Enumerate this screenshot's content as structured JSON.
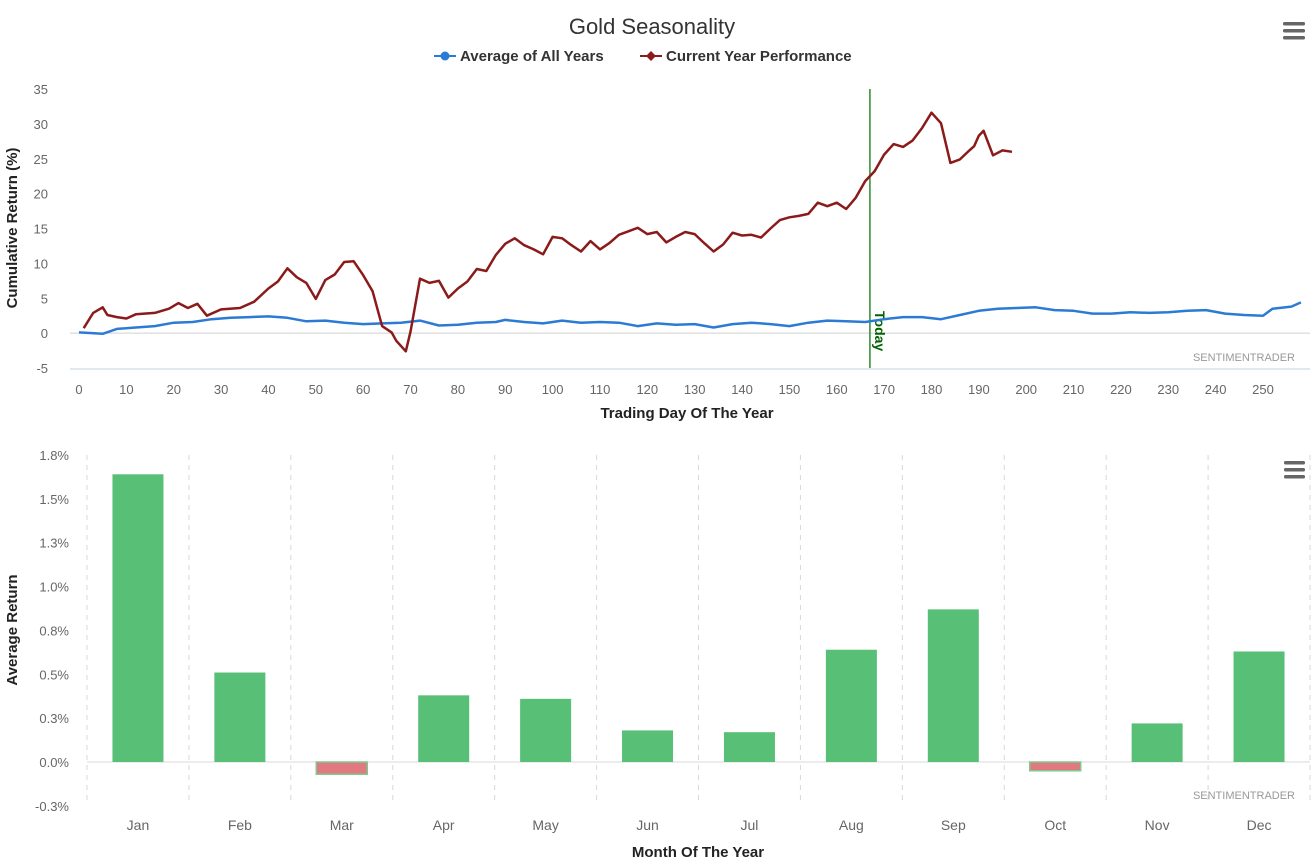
{
  "colors": {
    "avg_line": "#2b7bd5",
    "current_line": "#8b1a1a",
    "today_line": "#2e8b2e",
    "bar_positive": "#58bf77",
    "bar_negative": "#e07a80",
    "bar_negative_border": "#7fc98f"
  },
  "menu_icons": [
    "hamburger-icon",
    "hamburger-icon"
  ],
  "chart_data": [
    {
      "type": "line",
      "title": "Gold Seasonality",
      "xlabel": "Trading Day Of The Year",
      "ylabel": "Cumulative Return (%)",
      "xlim": [
        -2,
        259
      ],
      "ylim": [
        -5,
        35
      ],
      "xticks": [
        0,
        10,
        20,
        30,
        40,
        50,
        60,
        70,
        80,
        90,
        100,
        110,
        120,
        130,
        140,
        150,
        160,
        170,
        180,
        190,
        200,
        210,
        220,
        230,
        240,
        250
      ],
      "yticks": [
        -5,
        0,
        5,
        10,
        15,
        20,
        25,
        30,
        35
      ],
      "credit": "SENTIMENTRADER",
      "today": {
        "x": 167,
        "label": "Today"
      },
      "series": [
        {
          "name": "Average of All Years",
          "color": "#2b7bd5",
          "points": [
            [
              0,
              0.1
            ],
            [
              5,
              -0.1
            ],
            [
              8,
              0.6
            ],
            [
              12,
              0.8
            ],
            [
              16,
              1.0
            ],
            [
              20,
              1.5
            ],
            [
              24,
              1.6
            ],
            [
              28,
              2.0
            ],
            [
              32,
              2.2
            ],
            [
              36,
              2.3
            ],
            [
              40,
              2.4
            ],
            [
              44,
              2.2
            ],
            [
              48,
              1.7
            ],
            [
              52,
              1.8
            ],
            [
              56,
              1.5
            ],
            [
              60,
              1.3
            ],
            [
              64,
              1.4
            ],
            [
              68,
              1.5
            ],
            [
              72,
              1.8
            ],
            [
              76,
              1.1
            ],
            [
              80,
              1.2
            ],
            [
              84,
              1.5
            ],
            [
              88,
              1.6
            ],
            [
              90,
              1.9
            ],
            [
              94,
              1.6
            ],
            [
              98,
              1.4
            ],
            [
              102,
              1.8
            ],
            [
              106,
              1.5
            ],
            [
              110,
              1.6
            ],
            [
              114,
              1.5
            ],
            [
              118,
              1.0
            ],
            [
              122,
              1.4
            ],
            [
              126,
              1.2
            ],
            [
              130,
              1.3
            ],
            [
              134,
              0.8
            ],
            [
              138,
              1.3
            ],
            [
              142,
              1.5
            ],
            [
              146,
              1.3
            ],
            [
              150,
              1.0
            ],
            [
              154,
              1.5
            ],
            [
              158,
              1.8
            ],
            [
              162,
              1.7
            ],
            [
              166,
              1.6
            ],
            [
              170,
              2.0
            ],
            [
              174,
              2.3
            ],
            [
              178,
              2.3
            ],
            [
              182,
              2.0
            ],
            [
              186,
              2.6
            ],
            [
              190,
              3.2
            ],
            [
              194,
              3.5
            ],
            [
              198,
              3.6
            ],
            [
              202,
              3.7
            ],
            [
              206,
              3.3
            ],
            [
              210,
              3.2
            ],
            [
              214,
              2.8
            ],
            [
              218,
              2.8
            ],
            [
              222,
              3.0
            ],
            [
              226,
              2.9
            ],
            [
              230,
              3.0
            ],
            [
              234,
              3.2
            ],
            [
              238,
              3.3
            ],
            [
              242,
              2.8
            ],
            [
              246,
              2.6
            ],
            [
              250,
              2.5
            ],
            [
              252,
              3.5
            ],
            [
              256,
              3.8
            ],
            [
              258,
              4.4
            ]
          ]
        },
        {
          "name": "Current Year Performance",
          "color": "#8b1a1a",
          "points": [
            [
              1,
              0.7
            ],
            [
              3,
              2.9
            ],
            [
              5,
              3.7
            ],
            [
              6,
              2.6
            ],
            [
              8,
              2.3
            ],
            [
              10,
              2.1
            ],
            [
              12,
              2.7
            ],
            [
              16,
              2.9
            ],
            [
              19,
              3.5
            ],
            [
              21,
              4.3
            ],
            [
              23,
              3.6
            ],
            [
              25,
              4.2
            ],
            [
              27,
              2.5
            ],
            [
              30,
              3.4
            ],
            [
              34,
              3.6
            ],
            [
              37,
              4.5
            ],
            [
              40,
              6.4
            ],
            [
              42,
              7.4
            ],
            [
              44,
              9.3
            ],
            [
              46,
              8.0
            ],
            [
              48,
              7.2
            ],
            [
              50,
              4.9
            ],
            [
              52,
              7.6
            ],
            [
              54,
              8.4
            ],
            [
              56,
              10.2
            ],
            [
              58,
              10.3
            ],
            [
              60,
              8.3
            ],
            [
              62,
              6.0
            ],
            [
              64,
              1.0
            ],
            [
              66,
              0.1
            ],
            [
              67,
              -1.1
            ],
            [
              69,
              -2.6
            ],
            [
              70,
              0.2
            ],
            [
              72,
              7.8
            ],
            [
              74,
              7.2
            ],
            [
              76,
              7.5
            ],
            [
              78,
              5.1
            ],
            [
              80,
              6.4
            ],
            [
              82,
              7.4
            ],
            [
              84,
              9.2
            ],
            [
              86,
              8.9
            ],
            [
              88,
              11.2
            ],
            [
              90,
              12.8
            ],
            [
              92,
              13.6
            ],
            [
              94,
              12.6
            ],
            [
              96,
              12.0
            ],
            [
              98,
              11.3
            ],
            [
              100,
              13.8
            ],
            [
              102,
              13.6
            ],
            [
              104,
              12.6
            ],
            [
              106,
              11.7
            ],
            [
              108,
              13.2
            ],
            [
              110,
              12.0
            ],
            [
              112,
              12.9
            ],
            [
              114,
              14.1
            ],
            [
              116,
              14.6
            ],
            [
              118,
              15.1
            ],
            [
              120,
              14.2
            ],
            [
              122,
              14.5
            ],
            [
              124,
              13.0
            ],
            [
              126,
              13.8
            ],
            [
              128,
              14.5
            ],
            [
              130,
              14.2
            ],
            [
              132,
              12.9
            ],
            [
              134,
              11.7
            ],
            [
              136,
              12.7
            ],
            [
              138,
              14.4
            ],
            [
              140,
              14.0
            ],
            [
              142,
              14.1
            ],
            [
              144,
              13.7
            ],
            [
              146,
              15.0
            ],
            [
              148,
              16.2
            ],
            [
              150,
              16.6
            ],
            [
              152,
              16.8
            ],
            [
              154,
              17.1
            ],
            [
              156,
              18.7
            ],
            [
              158,
              18.2
            ],
            [
              160,
              18.7
            ],
            [
              162,
              17.8
            ],
            [
              164,
              19.4
            ],
            [
              166,
              21.8
            ],
            [
              168,
              23.2
            ],
            [
              170,
              25.6
            ],
            [
              172,
              27.1
            ],
            [
              174,
              26.7
            ],
            [
              176,
              27.6
            ],
            [
              178,
              29.4
            ],
            [
              180,
              31.6
            ],
            [
              182,
              30.1
            ],
            [
              184,
              24.4
            ],
            [
              186,
              24.9
            ],
            [
              188,
              26.2
            ],
            [
              189,
              26.8
            ],
            [
              190,
              28.3
            ],
            [
              191,
              29.0
            ],
            [
              193,
              25.5
            ],
            [
              195,
              26.2
            ],
            [
              197,
              26.0
            ]
          ]
        }
      ]
    },
    {
      "type": "bar",
      "title": "",
      "xlabel": "Month Of The Year",
      "ylabel": "Average Return",
      "ylim": [
        -0.3,
        1.8
      ],
      "yticks": [
        "1.8%",
        "1.5%",
        "1.3%",
        "1.0%",
        "0.8%",
        "0.5%",
        "0.3%",
        "0.0%",
        "-0.3%"
      ],
      "categories": [
        "Jan",
        "Feb",
        "Mar",
        "Apr",
        "May",
        "Jun",
        "Jul",
        "Aug",
        "Sep",
        "Oct",
        "Nov",
        "Dec"
      ],
      "values": [
        1.64,
        0.51,
        -0.07,
        0.38,
        0.36,
        0.18,
        0.17,
        0.64,
        0.87,
        -0.05,
        0.22,
        0.63
      ],
      "credit": "SENTIMENTRADER"
    }
  ]
}
